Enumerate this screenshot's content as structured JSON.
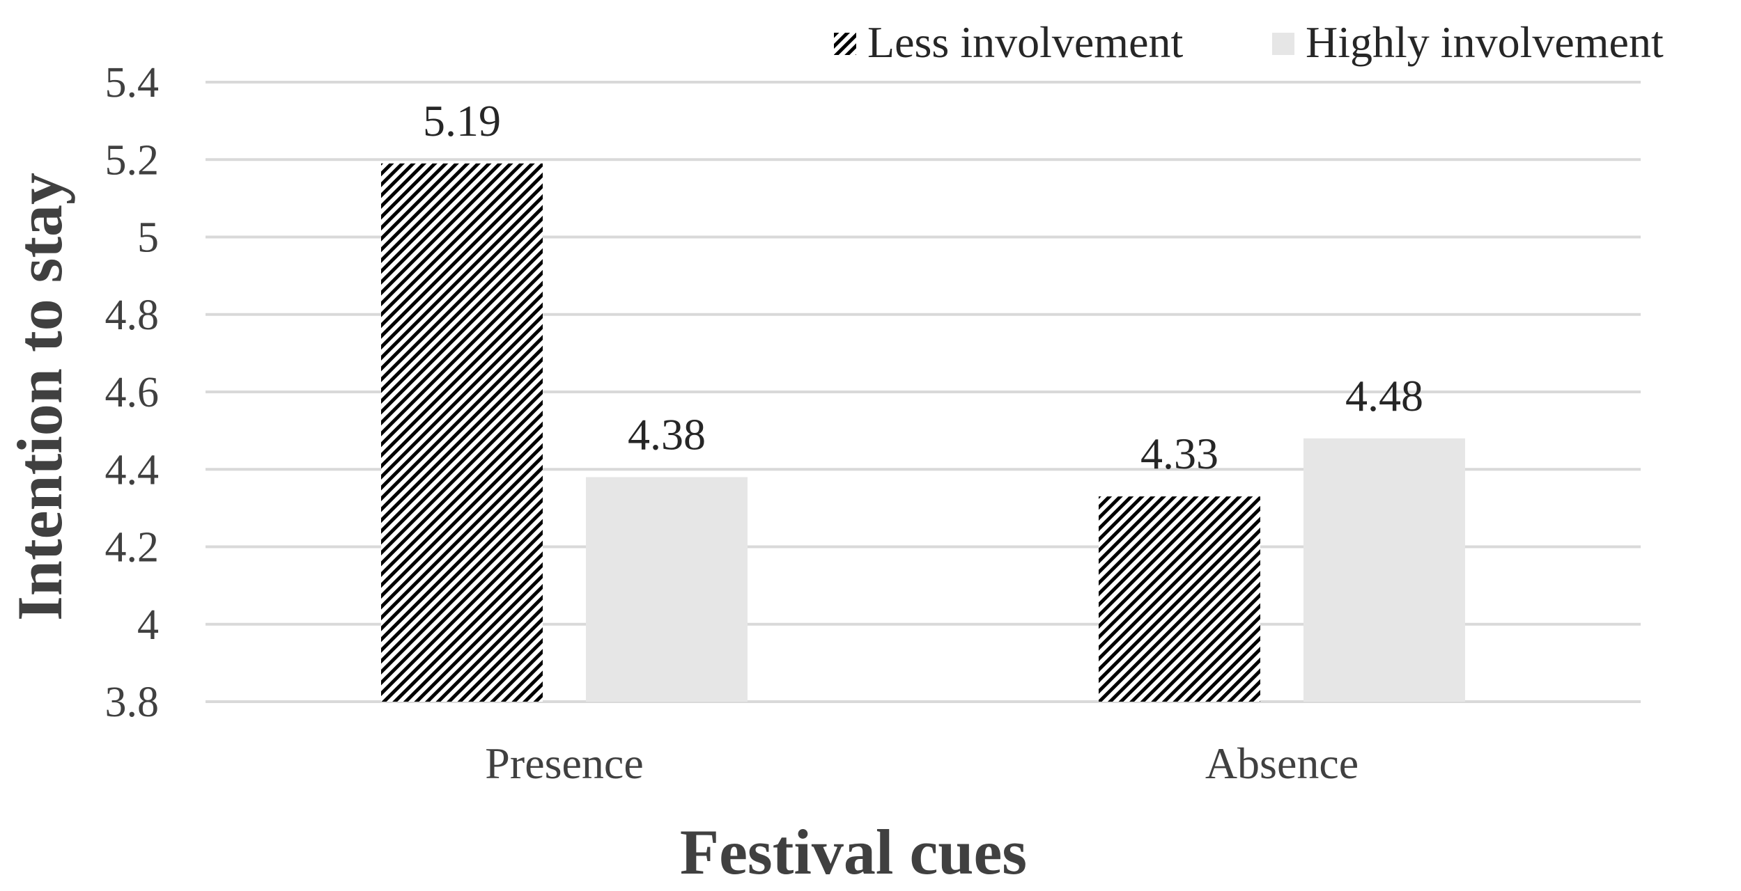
{
  "chart_data": {
    "type": "bar",
    "categories": [
      "Presence",
      "Absence"
    ],
    "series": [
      {
        "name": "Less involvement",
        "values": [
          5.19,
          4.33
        ],
        "pattern": "diagonal-hatch",
        "color": "#000000"
      },
      {
        "name": "Highly involvement",
        "values": [
          4.38,
          4.48
        ],
        "pattern": "solid",
        "color": "#e6e6e6"
      }
    ],
    "data_labels": [
      [
        "5.19",
        "4.33"
      ],
      [
        "4.38",
        "4.48"
      ]
    ],
    "xlabel": "Festival cues",
    "ylabel": "Intention to stay",
    "ylim": [
      3.8,
      5.4
    ],
    "yticks": [
      3.8,
      4,
      4.2,
      4.4,
      4.6,
      4.8,
      5,
      5.2,
      5.4
    ],
    "ytick_labels": [
      "3.8",
      "4",
      "4.2",
      "4.4",
      "4.6",
      "4.8",
      "5",
      "5.2",
      "5.4"
    ],
    "grid": true,
    "grid_color": "#d9d9d9",
    "legend_position": "top-right"
  }
}
